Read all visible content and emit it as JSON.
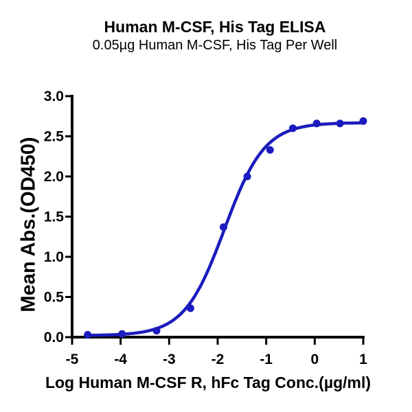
{
  "chart_data": {
    "type": "scatter",
    "title": "Human M-CSF, His Tag ELISA",
    "subtitle": "0.05µg Human M-CSF, His Tag Per Well",
    "xlabel": "Log Human M-CSF R, hFc Tag Conc.(µg/ml)",
    "ylabel": "Mean Abs.(OD450)",
    "xlim": [
      -5,
      1
    ],
    "ylim": [
      0,
      3
    ],
    "xticks": [
      -5,
      -4,
      -3,
      -2,
      -1,
      0,
      1
    ],
    "xtick_labels": [
      "-5",
      "-4",
      "-3",
      "-2",
      "-1",
      "0",
      "1"
    ],
    "yticks": [
      0,
      0.5,
      1,
      1.5,
      2,
      2.5,
      3
    ],
    "ytick_labels": [
      "0.0",
      "0.5",
      "1.0",
      "1.5",
      "2.0",
      "2.5",
      "3.0"
    ],
    "points": {
      "x": [
        -4.68,
        -3.97,
        -3.26,
        -2.56,
        -1.88,
        -1.39,
        -0.92,
        -0.45,
        0.04,
        0.52,
        1.0
      ],
      "y": [
        0.03,
        0.04,
        0.08,
        0.36,
        1.37,
        2.0,
        2.33,
        2.6,
        2.66,
        2.66,
        2.69
      ]
    },
    "fit_curve": {
      "model": "4PL",
      "bottom": 0.02,
      "top": 2.67,
      "logEC50": -1.86,
      "hill": 1.05,
      "x_start": -4.68,
      "x_end": 1.0
    },
    "colors": {
      "series": "#1B1BBE",
      "axis": "#000000",
      "text": "#000000",
      "background": "#FFFFFF"
    },
    "grid": false,
    "legend": "none"
  }
}
